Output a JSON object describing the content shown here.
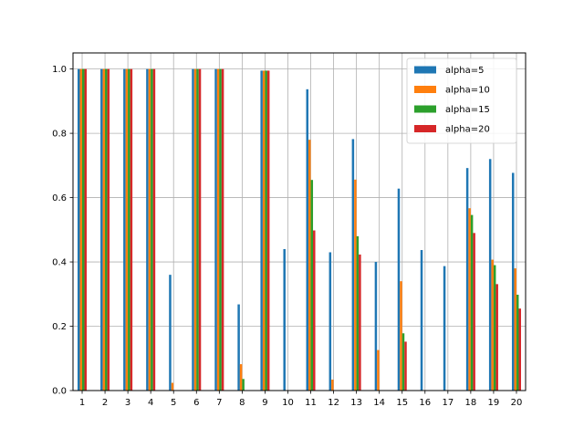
{
  "chart_data": {
    "type": "bar",
    "categories": [
      "1",
      "2",
      "3",
      "4",
      "5",
      "6",
      "7",
      "8",
      "9",
      "10",
      "11",
      "12",
      "13",
      "14",
      "15",
      "16",
      "17",
      "18",
      "19",
      "20"
    ],
    "series": [
      {
        "name": "alpha=5",
        "color": "#1f77b4",
        "values": [
          1.0,
          1.0,
          1.0,
          1.0,
          0.36,
          1.0,
          1.0,
          0.268,
          0.995,
          0.44,
          0.937,
          0.43,
          0.782,
          0.4,
          0.628,
          0.437,
          0.387,
          0.692,
          0.72,
          0.677
        ]
      },
      {
        "name": "alpha=10",
        "color": "#ff7f0e",
        "values": [
          1.0,
          1.0,
          1.0,
          1.0,
          0.024,
          1.0,
          1.0,
          0.082,
          0.995,
          0.0,
          0.78,
          0.034,
          0.656,
          0.126,
          0.34,
          0.0,
          0.0,
          0.567,
          0.407,
          0.38
        ]
      },
      {
        "name": "alpha=15",
        "color": "#2ca02c",
        "values": [
          1.0,
          1.0,
          1.0,
          1.0,
          0.0,
          1.0,
          1.0,
          0.036,
          0.995,
          0.0,
          0.655,
          0.0,
          0.48,
          0.0,
          0.178,
          0.0,
          0.0,
          0.546,
          0.39,
          0.298
        ]
      },
      {
        "name": "alpha=20",
        "color": "#d62728",
        "values": [
          1.0,
          1.0,
          1.0,
          1.0,
          0.0,
          1.0,
          1.0,
          0.0,
          0.995,
          0.0,
          0.498,
          0.0,
          0.423,
          0.0,
          0.152,
          0.0,
          0.0,
          0.49,
          0.331,
          0.255
        ]
      }
    ],
    "yticks": [
      "0.0",
      "0.2",
      "0.4",
      "0.6",
      "0.8",
      "1.0"
    ],
    "ylim": [
      0,
      1.05
    ],
    "grid": true,
    "legend_position": "upper right",
    "title": "",
    "xlabel": "",
    "ylabel": ""
  }
}
